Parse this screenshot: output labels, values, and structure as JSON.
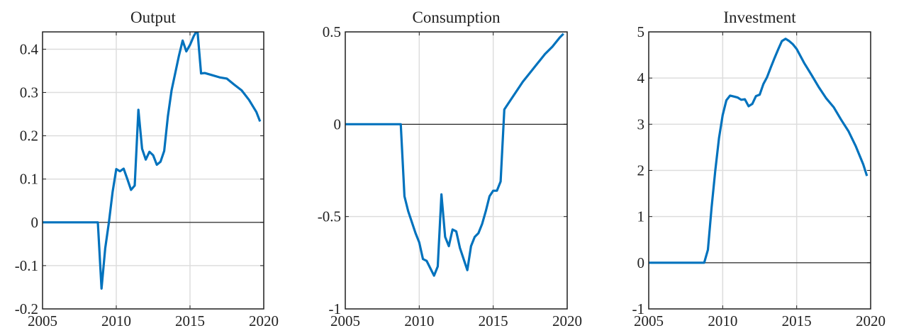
{
  "chart_data": [
    {
      "type": "line",
      "title": "Output",
      "color": "#0072bd",
      "grid": true,
      "xlim": [
        2005,
        2020
      ],
      "xticks": [
        2005,
        2010,
        2015,
        2020
      ],
      "ylim": [
        -0.2,
        0.44
      ],
      "yticks": [
        -0.2,
        -0.1,
        0,
        0.1,
        0.2,
        0.3,
        0.4
      ],
      "x": [
        2005,
        2006,
        2007,
        2008,
        2008.75,
        2009,
        2009.25,
        2009.5,
        2009.75,
        2010,
        2010.25,
        2010.5,
        2010.75,
        2011,
        2011.25,
        2011.5,
        2011.75,
        2012,
        2012.25,
        2012.5,
        2012.75,
        2013,
        2013.25,
        2013.5,
        2013.75,
        2014,
        2014.25,
        2014.5,
        2014.75,
        2015,
        2015.25,
        2015.5,
        2015.75,
        2016,
        2016.5,
        2017,
        2017.5,
        2018,
        2018.5,
        2019,
        2019.5,
        2019.75
      ],
      "values": [
        0,
        0,
        0,
        0,
        0,
        -0.153,
        -0.06,
        0,
        0.07,
        0.123,
        0.118,
        0.124,
        0.1,
        0.075,
        0.085,
        0.26,
        0.17,
        0.145,
        0.163,
        0.155,
        0.133,
        0.14,
        0.165,
        0.245,
        0.305,
        0.345,
        0.385,
        0.42,
        0.395,
        0.41,
        0.43,
        0.445,
        0.344,
        0.345,
        0.34,
        0.335,
        0.332,
        0.318,
        0.305,
        0.283,
        0.255,
        0.233
      ]
    },
    {
      "type": "line",
      "title": "Consumption",
      "color": "#0072bd",
      "grid": true,
      "xlim": [
        2005,
        2020
      ],
      "xticks": [
        2005,
        2010,
        2015,
        2020
      ],
      "ylim": [
        -1,
        0.5
      ],
      "yticks": [
        -1,
        -0.5,
        0,
        0.5
      ],
      "x": [
        2005,
        2006,
        2007,
        2008,
        2008.75,
        2009,
        2009.25,
        2009.5,
        2009.75,
        2010,
        2010.25,
        2010.5,
        2010.75,
        2011,
        2011.25,
        2011.5,
        2011.75,
        2012,
        2012.25,
        2012.5,
        2012.75,
        2013,
        2013.25,
        2013.5,
        2013.75,
        2014,
        2014.25,
        2014.5,
        2014.75,
        2015,
        2015.25,
        2015.5,
        2015.75,
        2016,
        2016.5,
        2017,
        2017.5,
        2018,
        2018.5,
        2019,
        2019.5,
        2019.75
      ],
      "values": [
        0,
        0,
        0,
        0,
        0,
        -0.39,
        -0.47,
        -0.53,
        -0.59,
        -0.64,
        -0.73,
        -0.74,
        -0.78,
        -0.82,
        -0.77,
        -0.38,
        -0.61,
        -0.66,
        -0.57,
        -0.58,
        -0.67,
        -0.73,
        -0.79,
        -0.66,
        -0.61,
        -0.59,
        -0.54,
        -0.47,
        -0.39,
        -0.36,
        -0.36,
        -0.31,
        0.08,
        0.11,
        0.17,
        0.23,
        0.28,
        0.33,
        0.38,
        0.42,
        0.47,
        0.49
      ]
    },
    {
      "type": "line",
      "title": "Investment",
      "color": "#0072bd",
      "grid": true,
      "xlim": [
        2005,
        2020
      ],
      "xticks": [
        2005,
        2010,
        2015,
        2020
      ],
      "ylim": [
        -1,
        5
      ],
      "yticks": [
        -1,
        0,
        1,
        2,
        3,
        4,
        5
      ],
      "x": [
        2005,
        2006,
        2007,
        2008,
        2008.75,
        2009,
        2009.25,
        2009.5,
        2009.75,
        2010,
        2010.25,
        2010.5,
        2010.75,
        2011,
        2011.25,
        2011.5,
        2011.75,
        2012,
        2012.25,
        2012.5,
        2012.75,
        2013,
        2013.25,
        2013.5,
        2013.75,
        2014,
        2014.25,
        2014.5,
        2014.75,
        2015,
        2015.5,
        2016,
        2016.5,
        2017,
        2017.5,
        2018,
        2018.5,
        2019,
        2019.5,
        2019.75
      ],
      "values": [
        0,
        0,
        0,
        0,
        0,
        0.28,
        1.2,
        2.0,
        2.7,
        3.2,
        3.52,
        3.62,
        3.6,
        3.58,
        3.53,
        3.54,
        3.39,
        3.44,
        3.61,
        3.64,
        3.87,
        4.02,
        4.23,
        4.43,
        4.62,
        4.8,
        4.85,
        4.8,
        4.73,
        4.63,
        4.33,
        4.07,
        3.8,
        3.56,
        3.37,
        3.1,
        2.85,
        2.52,
        2.13,
        1.88
      ]
    }
  ]
}
